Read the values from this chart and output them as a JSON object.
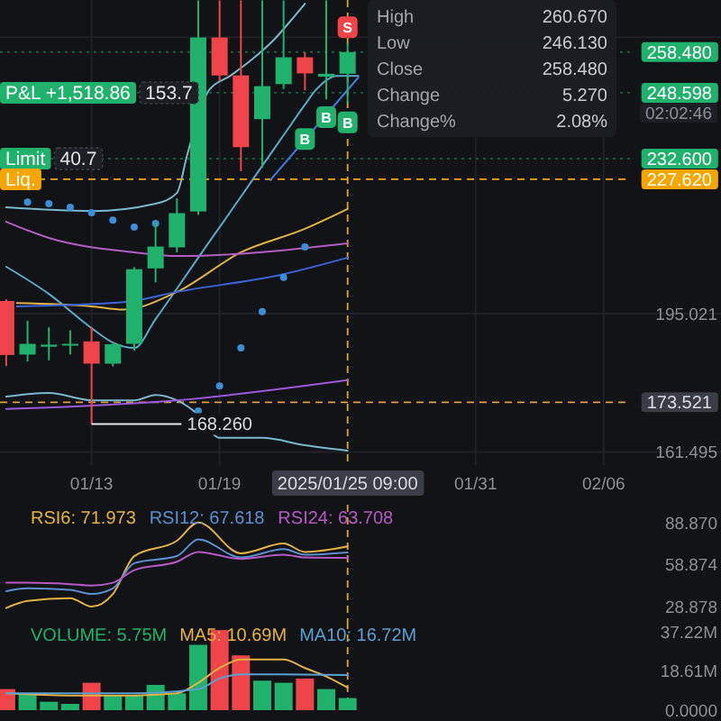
{
  "chart_data": [
    {
      "type": "candlestick",
      "x": [
        "2025-01-09",
        "2025-01-10",
        "2025-01-11",
        "2025-01-12",
        "2025-01-13",
        "2025-01-14",
        "2025-01-15",
        "2025-01-16",
        "2025-01-17",
        "2025-01-18",
        "2025-01-19",
        "2025-01-20",
        "2025-01-21",
        "2025-01-22",
        "2025-01-23",
        "2025-01-24",
        "2025-01-25"
      ],
      "ohlc": [
        [
          198.1,
          198.5,
          182.3,
          185.0
        ],
        [
          185.1,
          193.3,
          183.4,
          187.7
        ],
        [
          187.0,
          191.7,
          183.7,
          187.5
        ],
        [
          187.4,
          191.0,
          185.1,
          187.7
        ],
        [
          188.3,
          191.7,
          168.26,
          182.9
        ],
        [
          182.9,
          188.0,
          182.2,
          187.6
        ],
        [
          187.7,
          206.3,
          186.0,
          205.8
        ],
        [
          206.0,
          217.2,
          202.6,
          211.3
        ],
        [
          211.1,
          223.0,
          209.9,
          219.4
        ],
        [
          219.8,
          271.0,
          219.0,
          262.0
        ],
        [
          262.0,
          271.0,
          251.5,
          252.8
        ],
        [
          252.8,
          271.0,
          229.6,
          235.4
        ],
        [
          242.2,
          271.0,
          230.4,
          250.2
        ],
        [
          250.7,
          271.0,
          249.5,
          257.2
        ],
        [
          257.2,
          258.4,
          249.2,
          253.3
        ],
        [
          252.5,
          271.0,
          247.0,
          253.21
        ],
        [
          253.21,
          260.67,
          246.13,
          258.48
        ]
      ],
      "colors": [
        "#ef454a",
        "#20b26c",
        "#20b26c",
        "#20b26c",
        "#ef454a",
        "#20b26c",
        "#20b26c",
        "#20b26c",
        "#20b26c",
        "#20b26c",
        "#ef454a",
        "#ef454a",
        "#20b26c",
        "#20b26c",
        "#ef454a",
        "#20b26c",
        "#20b26c"
      ],
      "xlim": [
        "2025-01-08T17:00",
        "2025-02-11T12:00"
      ],
      "ylim": [
        158.3,
        271.1
      ],
      "xticks": [
        {
          "value": "2025-01-13",
          "label": "01/13"
        },
        {
          "value": "2025-01-19",
          "label": "01/19"
        },
        {
          "value": "2025-01-31",
          "label": "01/31"
        },
        {
          "value": "2025-02-06",
          "label": "02/06"
        }
      ],
      "yticks": [
        161.495,
        195.021,
        {
          "value": 262.073,
          "label": null
        }
      ],
      "grid": true,
      "series": [
        {
          "type": "line",
          "color": "#7ab8cc",
          "x": [
            "2025-01-09",
            "2025-01-13",
            "2025-01-16",
            "2025-01-17",
            "2025-01-17T12:00",
            "2025-01-18T12:00",
            "2025-01-19T12:00",
            "2025-01-20T12:00",
            "2025-01-21T12:00",
            "2025-01-22T12:00",
            "2025-01-23"
          ],
          "values": [
            220.8,
            219.9,
            221.7,
            224.3,
            233.9,
            249.2,
            252.7,
            256.6,
            261.2,
            267.1,
            270.2
          ]
        },
        {
          "type": "line",
          "color": "#5aa9c8",
          "x": [
            "2025-01-09",
            "2025-01-11",
            "2025-01-13",
            "2025-01-14",
            "2025-01-15",
            "2025-01-16",
            "2025-01-17",
            "2025-01-18",
            "2025-01-19",
            "2025-01-20",
            "2025-01-21",
            "2025-01-22",
            "2025-01-23",
            "2025-01-23T12:00",
            "2025-01-24T12:00",
            "2025-01-25T12:00"
          ],
          "values": [
            206.4,
            199.8,
            191.5,
            188.0,
            186.7,
            193.7,
            201.1,
            208.6,
            216.0,
            223.4,
            230.9,
            238.3,
            245.7,
            249.2,
            252.7,
            252.7
          ]
        },
        {
          "type": "line",
          "color": "#7ab8cc",
          "x": [
            "2025-01-09",
            "2025-01-11",
            "2025-01-13",
            "2025-01-15",
            "2025-01-16",
            "2025-01-17",
            "2025-01-18",
            "2025-01-19",
            "2025-01-21",
            "2025-01-23",
            "2025-01-25"
          ],
          "values": [
            174.9,
            175.8,
            174.0,
            174.0,
            175.3,
            174.0,
            170.5,
            164.9,
            164.9,
            163.1,
            161.8
          ]
        },
        {
          "type": "line",
          "color": "#e3b341",
          "x": [
            "2025-01-09T12:00",
            "2025-01-13",
            "2025-01-14T12:00",
            "2025-01-17",
            "2025-01-20",
            "2025-01-23",
            "2025-01-25"
          ],
          "values": [
            197.6,
            196.8,
            196.0,
            200.3,
            209.9,
            215.6,
            220.4
          ]
        },
        {
          "type": "line",
          "color": "#3a64d8",
          "x": [
            "2025-01-09T12:00",
            "2025-01-14T12:00",
            "2025-01-17",
            "2025-01-22",
            "2025-01-25"
          ],
          "values": [
            196.8,
            197.8,
            200.3,
            204.6,
            208.6
          ]
        },
        {
          "type": "line",
          "color": "#b05fc0",
          "x": [
            "2025-01-09",
            "2025-01-11",
            "2025-01-15",
            "2025-01-17",
            "2025-01-25"
          ],
          "values": [
            217.3,
            213.4,
            209.9,
            209.0,
            212.1
          ]
        },
        {
          "type": "line",
          "color": "#9a5ad8",
          "x": [
            "2025-01-09",
            "2025-01-17",
            "2025-01-25"
          ],
          "values": [
            171.9,
            174.0,
            178.9
          ]
        },
        {
          "type": "line",
          "color": "#3d7fe0",
          "x": [
            "2025-01-21T09:00",
            "2025-01-25T12:00"
          ],
          "values": [
            227.4,
            252.3
          ]
        },
        {
          "type": "scatter",
          "marker": "circle",
          "color": "#3b8ed8",
          "x": [
            "2025-01-10",
            "2025-01-11",
            "2025-01-12",
            "2025-01-13",
            "2025-01-14",
            "2025-01-15",
            "2025-01-16",
            "2025-01-18",
            "2025-01-19",
            "2025-01-20",
            "2025-01-21",
            "2025-01-22",
            "2025-01-23"
          ],
          "values": [
            222.1,
            221.7,
            220.8,
            219.5,
            217.7,
            216.0,
            216.9,
            171.4,
            177.5,
            186.7,
            195.5,
            203.8,
            211.2
          ]
        },
        {
          "type": "scatter",
          "marker": "square",
          "color": "#ef454a",
          "x": [
            "2025-01-25"
          ],
          "values": [
            264.5
          ]
        },
        {
          "type": "scatter",
          "marker": "square",
          "color": "#20b26c",
          "x": [
            "2025-01-23",
            "2025-01-24",
            "2025-01-25"
          ],
          "values": [
            237.4,
            242.7,
            241.4
          ]
        }
      ],
      "ref_lines": [
        {
          "axis": "y",
          "value": 258.48,
          "label": "258.480",
          "color": "#20b26c",
          "line_style": "dotted"
        },
        {
          "axis": "y",
          "value": 248.598,
          "label": "248.598",
          "color": "#20b26c",
          "line_style": "dotted"
        },
        {
          "axis": "y",
          "value": 232.6,
          "label": "232.600",
          "color": "#20b26c",
          "line_style": "dotted"
        },
        {
          "axis": "y",
          "value": 227.62,
          "label": "227.620",
          "color": "#f7a600",
          "line_style": "dashed"
        },
        {
          "axis": "y",
          "value": 173.521,
          "label": "173.521",
          "color": "#e0a03a",
          "line_style": "dashed"
        },
        {
          "axis": "x",
          "value": "2025-01-25",
          "label": "2025/01/25 09:00",
          "color": "#e0a03a",
          "line_style": "dashed"
        }
      ],
      "annotations": [
        {
          "text": "P&L +1,518.86",
          "y": 248.598
        },
        {
          "text": "153.7",
          "y": 248.598
        },
        {
          "text": "Limit",
          "y": 232.6
        },
        {
          "text": "40.7",
          "y": 232.6
        },
        {
          "text": "Liq.",
          "y": 227.62
        },
        {
          "text": "168.260",
          "x": "2025-01-13",
          "y": 168.26
        },
        {
          "text": "S",
          "x": "2025-01-25",
          "y": 264.5
        },
        {
          "text": "B",
          "x": "2025-01-23",
          "y": 237.4
        },
        {
          "text": "B",
          "x": "2025-01-24",
          "y": 242.7
        },
        {
          "text": "B",
          "x": "2025-01-25",
          "y": 241.4
        },
        "02:02:46"
      ]
    },
    {
      "type": "line",
      "xlim": [
        "2025-01-08T17:00",
        "2025-02-11T12:00"
      ],
      "ylim": [
        18.1,
        101.7
      ],
      "yticks": [
        {
          "value": 88.87,
          "label": "88.870"
        },
        58.874,
        28.878
      ],
      "tick_labels": "y",
      "legend": "top left",
      "series": [
        {
          "name": "RSI6: 71.973",
          "color": "#e3b341",
          "x": [
            "2025-01-09",
            "2025-01-10",
            "2025-01-12",
            "2025-01-13",
            "2025-01-14",
            "2025-01-15",
            "2025-01-17",
            "2025-01-18",
            "2025-01-20",
            "2025-01-22",
            "2025-01-23",
            "2025-01-25"
          ],
          "values": [
            28,
            33,
            35,
            29,
            38,
            65,
            76,
            89,
            67,
            74,
            68,
            71.973
          ]
        },
        {
          "name": "RSI12: 67.618",
          "color": "#5b8fd0",
          "x": [
            "2025-01-09",
            "2025-01-10",
            "2025-01-12",
            "2025-01-13",
            "2025-01-14",
            "2025-01-15",
            "2025-01-17",
            "2025-01-18",
            "2025-01-20",
            "2025-01-22",
            "2025-01-23",
            "2025-01-25"
          ],
          "values": [
            40,
            42,
            41,
            38,
            42,
            60,
            65,
            77,
            64,
            70,
            66,
            67.618
          ]
        },
        {
          "name": "RSI24: 63.708",
          "color": "#b55ac4",
          "x": [
            "2025-01-09",
            "2025-01-10",
            "2025-01-12",
            "2025-01-13",
            "2025-01-14",
            "2025-01-15",
            "2025-01-17",
            "2025-01-18",
            "2025-01-20",
            "2025-01-22",
            "2025-01-23",
            "2025-01-25"
          ],
          "values": [
            46,
            46,
            45,
            44,
            46,
            55,
            61,
            68,
            63,
            66,
            64,
            63.708
          ]
        }
      ],
      "ref_lines": [
        {
          "axis": "x",
          "value": "2025-01-25",
          "color": "#e0a03a",
          "line_style": "dashed"
        }
      ]
    },
    {
      "type": "bar",
      "x": [
        "2025-01-09",
        "2025-01-10",
        "2025-01-11",
        "2025-01-12",
        "2025-01-13",
        "2025-01-14",
        "2025-01-15",
        "2025-01-16",
        "2025-01-17",
        "2025-01-18",
        "2025-01-19",
        "2025-01-20",
        "2025-01-21",
        "2025-01-22",
        "2025-01-23",
        "2025-01-24",
        "2025-01-25"
      ],
      "xlim": [
        "2025-01-08T17:00",
        "2025-02-11T12:00"
      ],
      "ylim": [
        0,
        41.9
      ],
      "yticks": [
        {
          "value": 37.22,
          "label": "37.22M"
        },
        {
          "value": 18.61,
          "label": "18.61M"
        },
        {
          "value": 0,
          "label": "0.0000"
        }
      ],
      "tick_labels": "y",
      "legend": "top left",
      "series": [
        {
          "name": "VOLUME: 5.75M",
          "color": "#20b26c",
          "colors": [
            "#ef454a",
            "#20b26c",
            "#20b26c",
            "#20b26c",
            "#ef454a",
            "#20b26c",
            "#20b26c",
            "#20b26c",
            "#20b26c",
            "#20b26c",
            "#ef454a",
            "#ef454a",
            "#20b26c",
            "#20b26c",
            "#ef454a",
            "#20b26c",
            "#20b26c"
          ],
          "values": [
            10,
            8,
            4,
            3,
            13,
            7,
            7,
            12,
            8,
            31,
            38,
            26,
            14,
            13,
            15,
            10,
            5.75
          ]
        },
        {
          "type": "line",
          "name": "MA5: 10.69M",
          "color": "#e3b341",
          "x": [
            "2025-01-09",
            "2025-01-12",
            "2025-01-15",
            "2025-01-17",
            "2025-01-18",
            "2025-01-19",
            "2025-01-20",
            "2025-01-22",
            "2025-01-23",
            "2025-01-24",
            "2025-01-25"
          ],
          "values": [
            8,
            7,
            7,
            8,
            13,
            20,
            24,
            24,
            20,
            16,
            10.69
          ]
        },
        {
          "type": "line",
          "name": "MA10: 16.72M",
          "color": "#5b9fd0",
          "x": [
            "2025-01-09",
            "2025-01-15",
            "2025-01-18",
            "2025-01-19",
            "2025-01-20",
            "2025-01-22",
            "2025-01-25"
          ],
          "values": [
            8,
            8,
            10,
            15,
            17,
            17,
            16.72
          ]
        }
      ],
      "ref_lines": [
        {
          "axis": "x",
          "value": "2025-01-25",
          "color": "#e0a03a",
          "line_style": "dashed"
        }
      ]
    },
    {
      "type": "other",
      "annotations": [
        "High 260.670",
        "Low 246.130",
        "Close 258.480",
        "Change 5.270",
        "Change% 2.08%"
      ]
    }
  ]
}
